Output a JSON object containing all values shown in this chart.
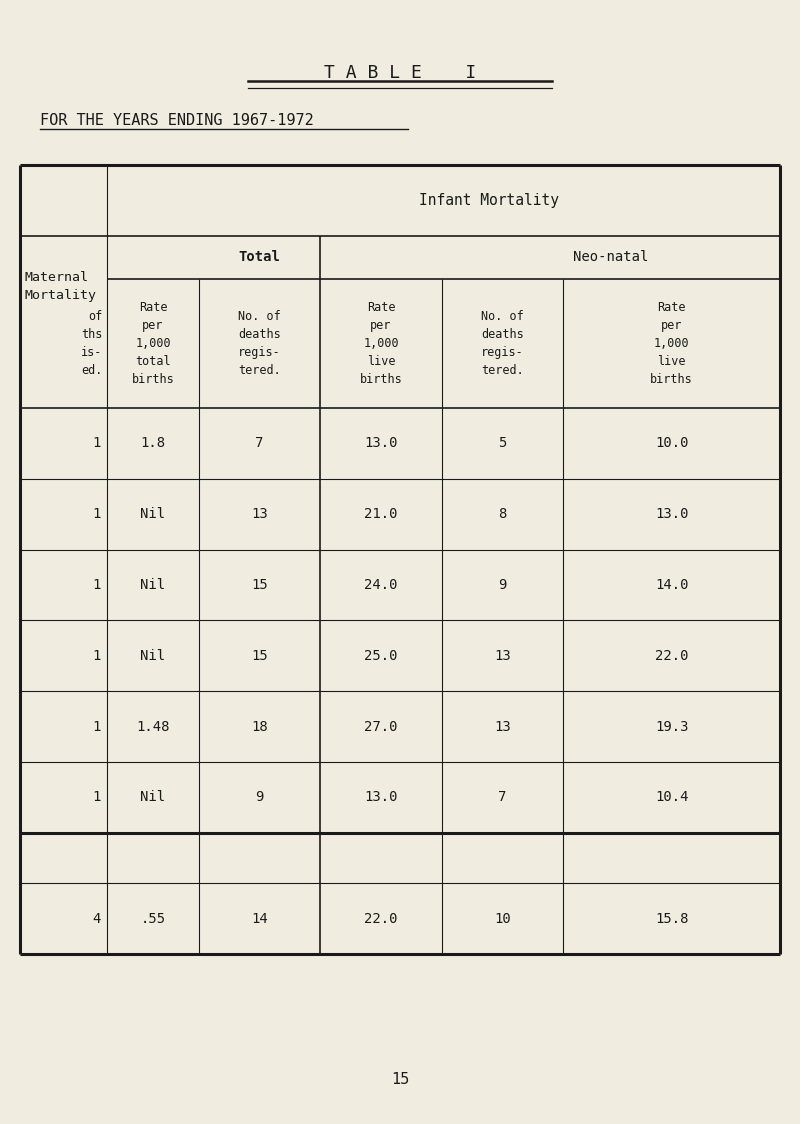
{
  "title": "T A B L E    I",
  "subtitle": "FOR THE YEARS ENDING 1967-1972",
  "bg_color": "#F0EDE0",
  "text_color": "#1a1a1a",
  "page_number": "15",
  "header_maternal": "Maternal\nMortality",
  "header_infant": "Infant Mortality",
  "header_total": "Total",
  "header_neonatal": "Neo-natal",
  "col0_header": "of\nths\nis-\ned.",
  "col1_header": "Rate\nper\n1,000\ntotal\nbirths",
  "col2_header": "No. of\ndeaths\nregis-\ntered.",
  "col3_header": "Rate\nper\n1,000\nlive\nbirths",
  "col4_header": "No. of\ndeaths\nregis-\ntered.",
  "col5_header": "Rate\nper\n1,000\nlive\nbirths",
  "data_rows": [
    [
      "1",
      "1.8",
      "7",
      "13.0",
      "5",
      "10.0"
    ],
    [
      "1",
      "Nil",
      "13",
      "21.0",
      "8",
      "13.0"
    ],
    [
      "1",
      "Nil",
      "15",
      "24.0",
      "9",
      "14.0"
    ],
    [
      "1",
      "Nil",
      "15",
      "25.0",
      "13",
      "22.0"
    ],
    [
      "1",
      "1.48",
      "18",
      "27.0",
      "13",
      "19.3"
    ],
    [
      "1",
      "Nil",
      "9",
      "13.0",
      "7",
      "10.4"
    ]
  ],
  "total_row": [
    "4",
    ".55",
    "14",
    "22.0",
    "10",
    "15.8"
  ]
}
